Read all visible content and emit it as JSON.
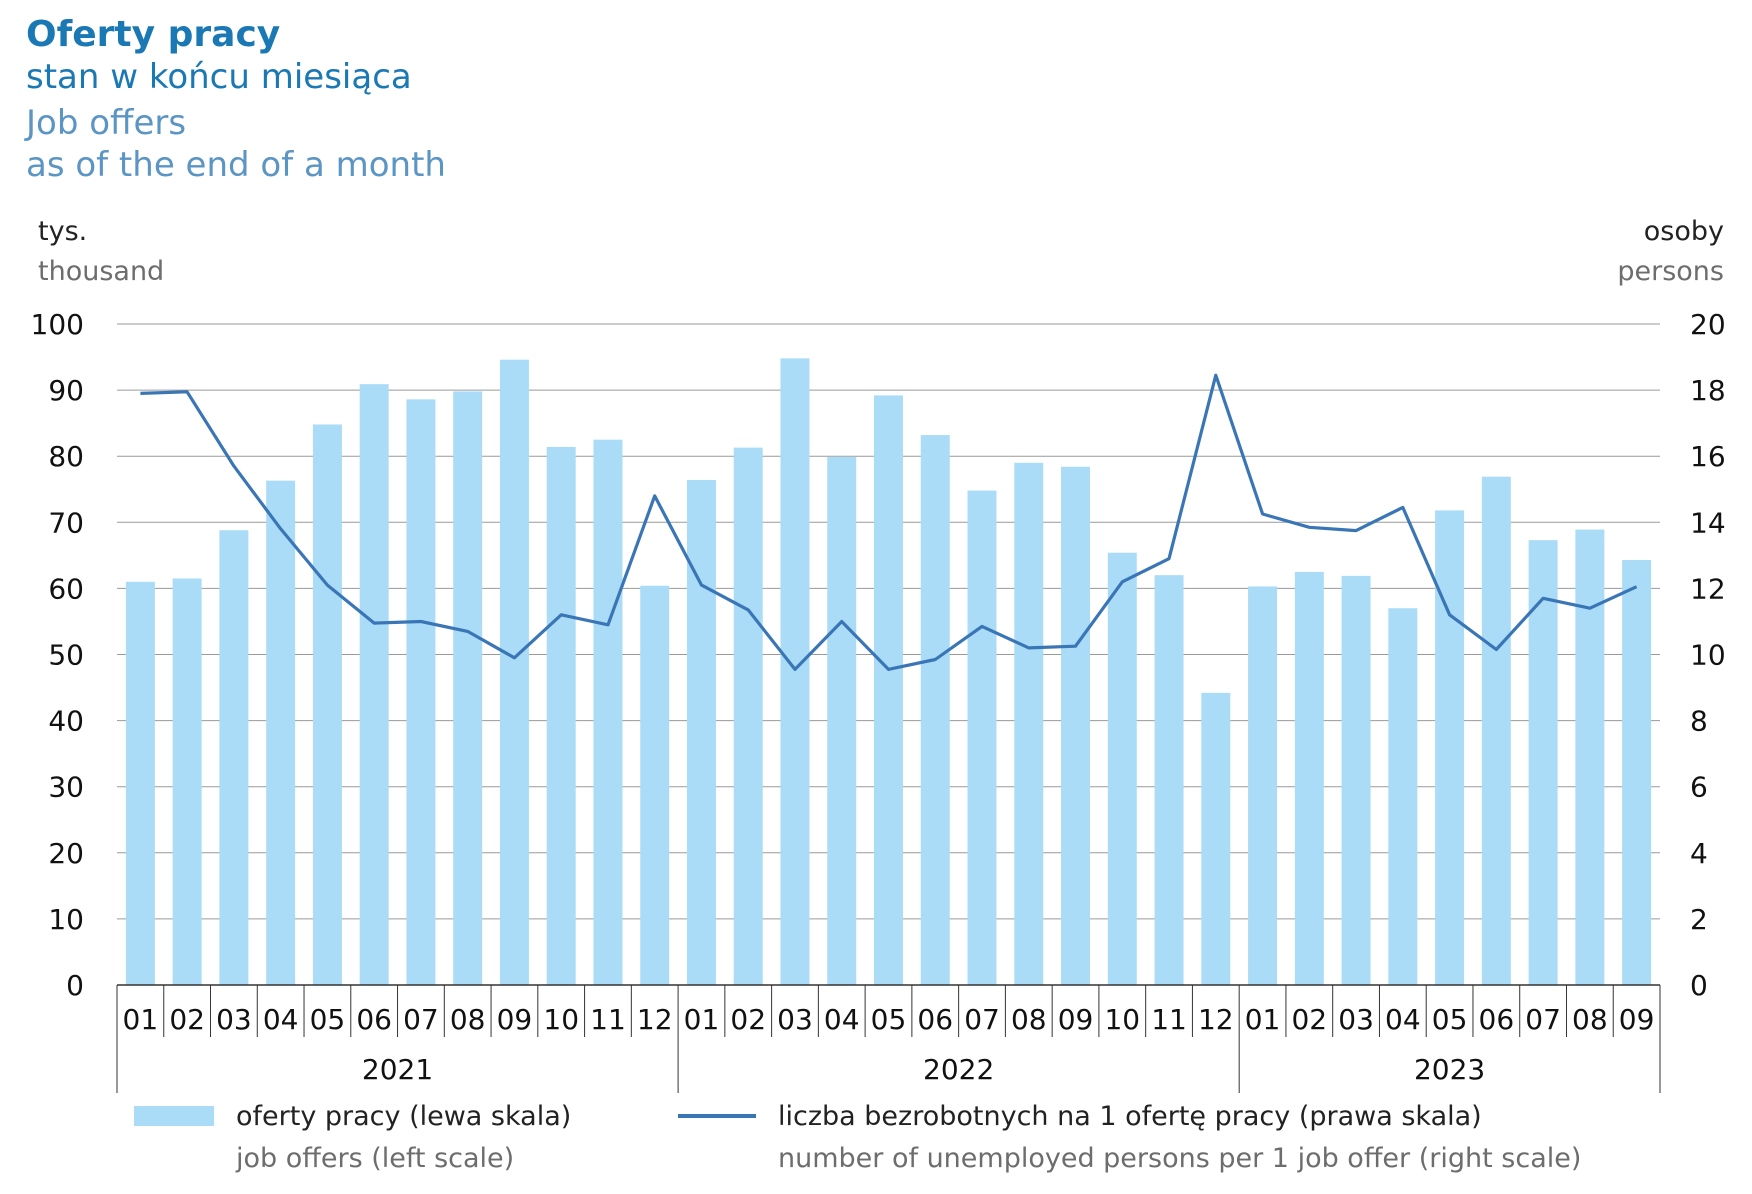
{
  "title": {
    "pl_main": "Oferty pracy",
    "pl_sub": "stan w końcu miesiąca",
    "en_main": "Job offers",
    "en_sub": "as of the end of a month"
  },
  "axis_units": {
    "left_pl": "tys.",
    "left_en": "thousand",
    "right_pl": "osoby",
    "right_en": "persons"
  },
  "legend": {
    "bars_pl": "oferty pracy (lewa skala)",
    "bars_en": "job offers (left scale)",
    "line_pl": "liczba bezrobotnych na 1 ofertę pracy (prawa skala)",
    "line_en": "number of unemployed persons per 1 job offer (right scale)"
  },
  "colors": {
    "bars": "#aadcf8",
    "line": "#3a76b5",
    "grid": "#9a9a9a",
    "axis": "#333333"
  },
  "chart_data": {
    "type": "bar",
    "categories": [
      "01",
      "02",
      "03",
      "04",
      "05",
      "06",
      "07",
      "08",
      "09",
      "10",
      "11",
      "12",
      "01",
      "02",
      "03",
      "04",
      "05",
      "06",
      "07",
      "08",
      "09",
      "10",
      "11",
      "12",
      "01",
      "02",
      "03",
      "04",
      "05",
      "06",
      "07",
      "08",
      "09"
    ],
    "years": [
      {
        "label": "2021",
        "months": 12
      },
      {
        "label": "2022",
        "months": 12
      },
      {
        "label": "2023",
        "months": 9
      }
    ],
    "series": [
      {
        "name": "oferty pracy (lewa skala)",
        "type": "bar",
        "axis": "left",
        "values": [
          61.0,
          61.5,
          68.8,
          76.3,
          84.8,
          90.9,
          88.6,
          89.8,
          94.6,
          81.4,
          82.5,
          60.4,
          76.4,
          81.3,
          94.8,
          79.9,
          89.2,
          83.2,
          74.8,
          79.0,
          78.4,
          65.4,
          62.0,
          44.2,
          60.3,
          62.5,
          61.9,
          57.0,
          71.8,
          76.9,
          67.3,
          68.9,
          64.3
        ]
      },
      {
        "name": "liczba bezrobotnych na 1 ofertę pracy (prawa skala)",
        "type": "line",
        "axis": "right",
        "values": [
          17.9,
          17.95,
          15.7,
          13.8,
          12.1,
          10.95,
          11.0,
          10.7,
          9.9,
          11.2,
          10.9,
          14.8,
          12.1,
          11.35,
          9.55,
          11.0,
          9.55,
          9.85,
          10.85,
          10.2,
          10.25,
          12.2,
          12.9,
          18.45,
          14.25,
          13.85,
          13.75,
          14.45,
          11.2,
          10.15,
          11.7,
          11.4,
          12.05
        ]
      }
    ],
    "ylim_left": [
      0,
      100
    ],
    "yticks_left": [
      0,
      10,
      20,
      30,
      40,
      50,
      60,
      70,
      80,
      90,
      100
    ],
    "ylim_right": [
      0,
      20
    ],
    "yticks_right": [
      0,
      2,
      4,
      6,
      8,
      10,
      12,
      14,
      16,
      18,
      20
    ],
    "grid": true,
    "legend_position": "bottom"
  }
}
